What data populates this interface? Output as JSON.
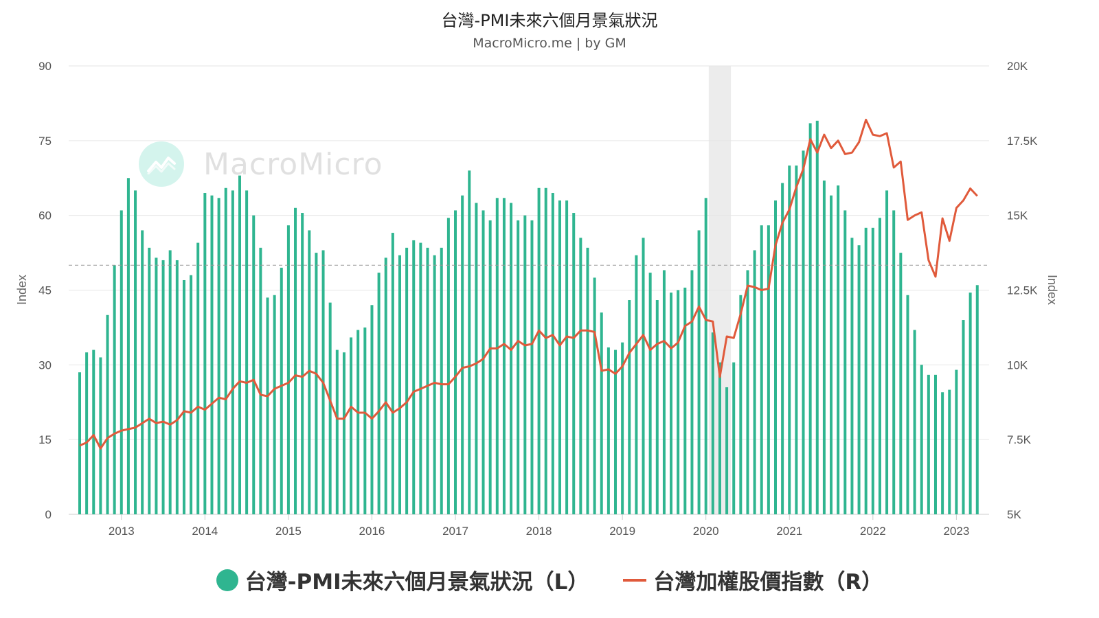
{
  "title": "台灣-PMI未來六個月景氣狀況",
  "subtitle": "MacroMicro.me | by GM",
  "watermark": "MacroMicro",
  "colors": {
    "bars": "#2fb590",
    "line": "#e05a3b",
    "grid": "#e6e6e6",
    "reference": "#999999",
    "recession": "#ececec"
  },
  "chart_data": {
    "type": "bar",
    "left_axis": {
      "label": "Index",
      "ticks": [
        "0",
        "15",
        "30",
        "45",
        "60",
        "75",
        "90"
      ],
      "min": 0,
      "max": 90
    },
    "right_axis": {
      "label": "Index",
      "ticks": [
        "5K",
        "7.5K",
        "10K",
        "12.5K",
        "15K",
        "17.5K",
        "20K"
      ],
      "min": 5000,
      "max": 20000
    },
    "x_ticks": [
      "2013",
      "2014",
      "2015",
      "2016",
      "2017",
      "2018",
      "2019",
      "2020",
      "2021",
      "2022",
      "2023"
    ],
    "reference_line": 50,
    "shaded_period": [
      "2020-02",
      "2020-04"
    ],
    "legend_position": "bottom",
    "series": [
      {
        "name": "台灣-PMI未來六個月景氣狀況（L）",
        "type": "bar",
        "axis": "left",
        "start": "2012-07",
        "values": [
          28.5,
          32.5,
          33,
          31.5,
          40,
          50,
          61,
          67.5,
          65,
          57,
          53.5,
          51.5,
          51,
          53,
          51,
          47,
          48,
          54.5,
          64.5,
          64,
          63.5,
          65.5,
          65,
          68,
          65,
          60,
          53.5,
          43.5,
          44,
          49.5,
          58,
          61.5,
          60.5,
          57,
          52.5,
          53,
          42.5,
          33,
          32.5,
          35.5,
          37,
          37.5,
          42,
          48.5,
          51.5,
          56.5,
          52,
          53.5,
          55,
          54.5,
          53.5,
          52,
          53.5,
          59.5,
          61,
          64,
          69,
          62.5,
          61,
          59,
          63.5,
          63.5,
          62.5,
          59,
          60,
          59,
          65.5,
          65.5,
          64.5,
          63,
          63,
          60.5,
          55.5,
          53.5,
          47.5,
          40.5,
          33.5,
          33,
          34.5,
          43,
          52,
          55.5,
          48.5,
          43,
          49,
          44.5,
          45,
          45.5,
          49,
          57,
          63.5,
          36.5,
          30.5,
          25.5,
          30.5,
          44,
          49,
          53,
          58,
          58,
          63,
          66.5,
          70,
          70,
          73,
          78.5,
          79,
          67,
          64,
          66,
          61,
          55.5,
          54,
          57.5,
          57.5,
          59.5,
          65,
          61,
          52.5,
          44,
          37,
          30,
          28,
          28,
          24.5,
          25,
          29,
          39,
          44.5,
          46
        ]
      },
      {
        "name": "台灣加權股價指數（R）",
        "type": "line",
        "axis": "right",
        "start": "2012-07",
        "values": [
          7300,
          7400,
          7650,
          7200,
          7550,
          7700,
          7800,
          7850,
          7900,
          8050,
          8200,
          8050,
          8100,
          8000,
          8150,
          8450,
          8400,
          8600,
          8500,
          8700,
          8900,
          8850,
          9200,
          9450,
          9400,
          9500,
          9000,
          8950,
          9200,
          9300,
          9400,
          9650,
          9600,
          9800,
          9700,
          9400,
          8800,
          8200,
          8200,
          8600,
          8400,
          8400,
          8200,
          8450,
          8750,
          8400,
          8550,
          8750,
          9100,
          9200,
          9300,
          9400,
          9350,
          9350,
          9600,
          9900,
          9950,
          10050,
          10200,
          10550,
          10550,
          10700,
          10500,
          10800,
          10650,
          10700,
          11150,
          10900,
          11000,
          10650,
          10950,
          10900,
          11150,
          11150,
          11100,
          9800,
          9850,
          9700,
          9950,
          10400,
          10700,
          11000,
          10500,
          10700,
          10800,
          10550,
          10750,
          11300,
          11450,
          11950,
          11500,
          11450,
          9600,
          10950,
          10900,
          11700,
          12650,
          12600,
          12500,
          12550,
          14000,
          14750,
          15200,
          15950,
          16550,
          17550,
          17100,
          17700,
          17250,
          17500,
          17050,
          17100,
          17450,
          18200,
          17700,
          17650,
          17750,
          16600,
          16800,
          14850,
          15000,
          15100,
          13500,
          12950,
          14900,
          14150,
          15250,
          15500,
          15900,
          15650
        ]
      }
    ]
  }
}
